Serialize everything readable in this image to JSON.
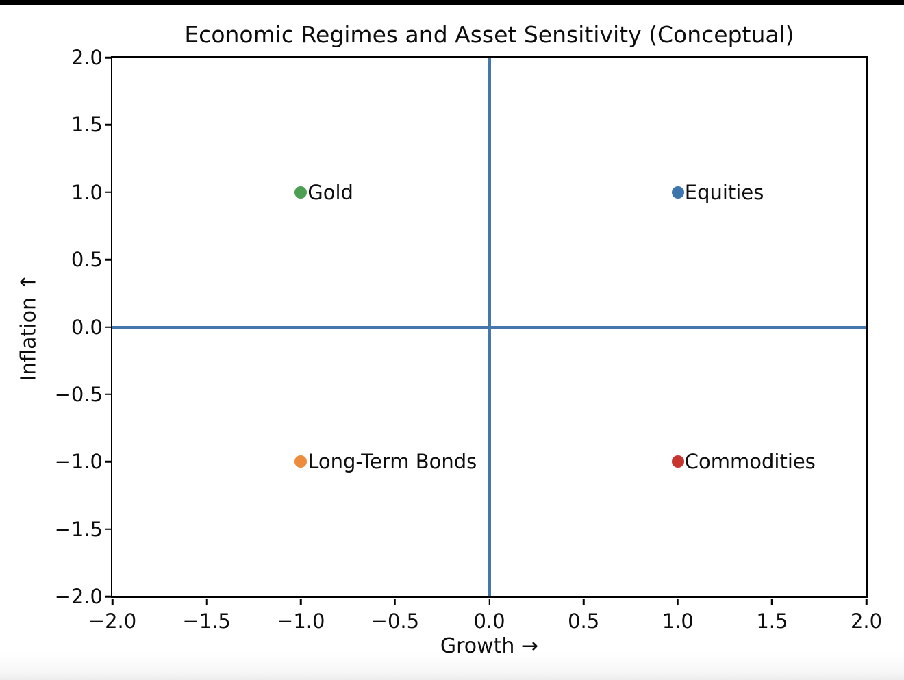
{
  "window": {
    "top_bar_color": "#000000",
    "background_color": "#ffffff"
  },
  "chart_data": {
    "type": "scatter",
    "title": "Economic Regimes and Asset Sensitivity (Conceptual)",
    "xlabel": "Growth →",
    "ylabel": "Inflation ↑",
    "xlim": [
      -2.0,
      2.0
    ],
    "ylim": [
      -2.0,
      2.0
    ],
    "xticks": [
      -2.0,
      -1.5,
      -1.0,
      -0.5,
      0.0,
      0.5,
      1.0,
      1.5,
      2.0
    ],
    "yticks": [
      -2.0,
      -1.5,
      -1.0,
      -0.5,
      0.0,
      0.5,
      1.0,
      1.5,
      2.0
    ],
    "grid": false,
    "legend": "none",
    "axis_color": "#000000",
    "crosshair": {
      "x": 0.0,
      "y": 0.0,
      "color": "#4577ad"
    },
    "points": [
      {
        "label": "Gold",
        "x": -1.0,
        "y": 1.0,
        "color": "#4c9e52"
      },
      {
        "label": "Equities",
        "x": 1.0,
        "y": 1.0,
        "color": "#3c76ad"
      },
      {
        "label": "Long-Term Bonds",
        "x": -1.0,
        "y": -1.0,
        "color": "#ec8c3c"
      },
      {
        "label": "Commodities",
        "x": 1.0,
        "y": -1.0,
        "color": "#c8342f"
      }
    ]
  }
}
